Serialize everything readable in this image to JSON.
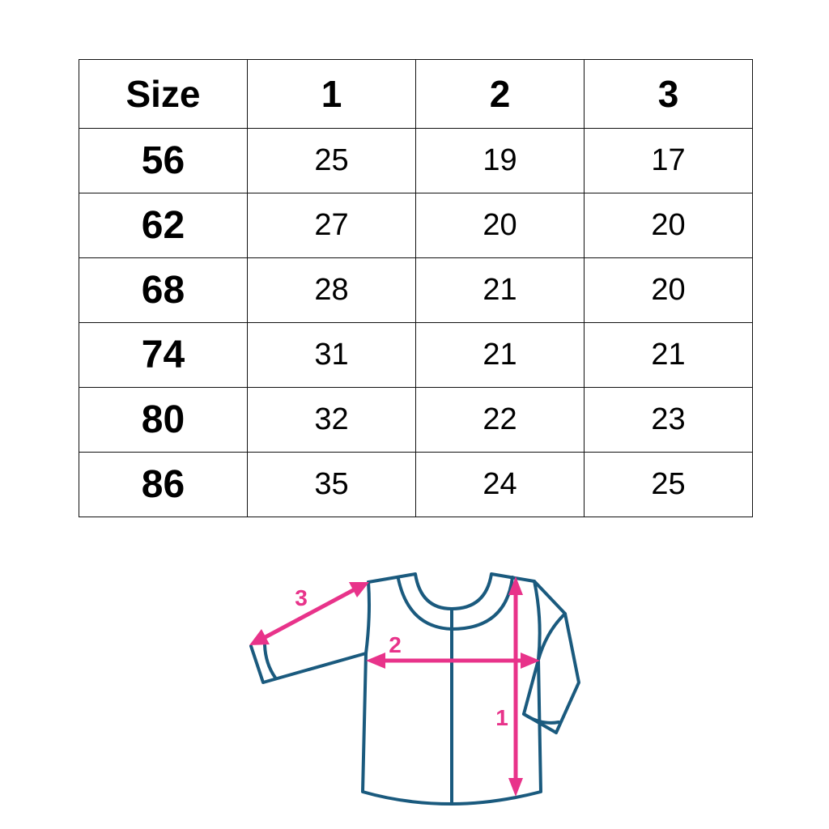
{
  "size_table": {
    "headers": [
      "Size",
      "1",
      "2",
      "3"
    ],
    "rows": [
      {
        "size": "56",
        "m1": "25",
        "m2": "19",
        "m3": "17"
      },
      {
        "size": "62",
        "m1": "27",
        "m2": "20",
        "m3": "20"
      },
      {
        "size": "68",
        "m1": "28",
        "m2": "21",
        "m3": "20"
      },
      {
        "size": "74",
        "m1": "31",
        "m2": "21",
        "m3": "21"
      },
      {
        "size": "80",
        "m1": "32",
        "m2": "22",
        "m3": "23"
      },
      {
        "size": "86",
        "m1": "35",
        "m2": "24",
        "m3": "25"
      }
    ]
  },
  "diagram": {
    "labels": {
      "length": "1",
      "width": "2",
      "sleeve": "3"
    },
    "colors": {
      "outline": "#1a5a7e",
      "arrow": "#e8338a"
    }
  }
}
